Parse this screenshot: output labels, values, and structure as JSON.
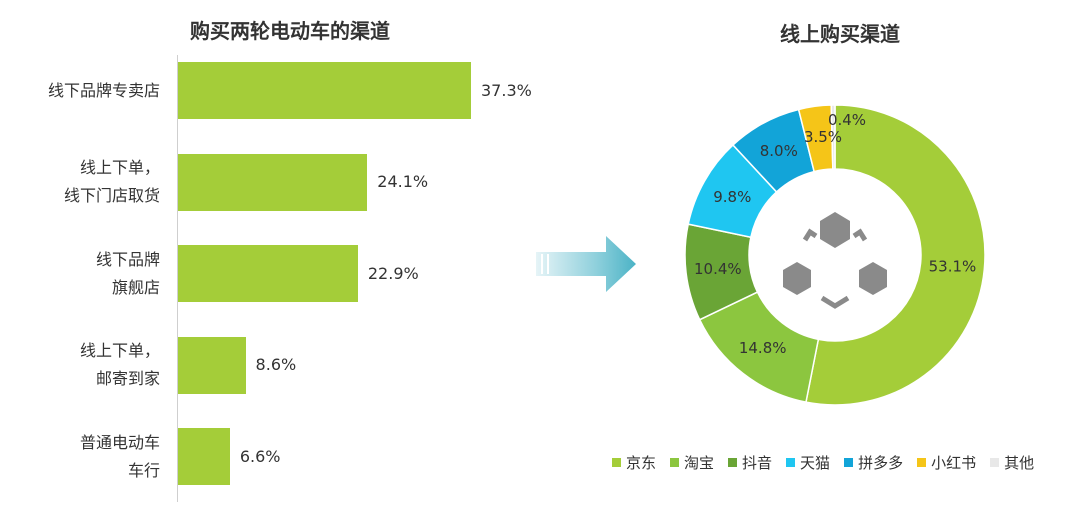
{
  "chart_data": [
    {
      "type": "bar",
      "orientation": "horizontal",
      "title": "购买两轮电动车的渠道",
      "categories": [
        "线下品牌专卖店",
        "线上下单，\n线下门店取货",
        "线下品牌\n旗舰店",
        "线上下单，\n邮寄到家",
        "普通电动车\n车行"
      ],
      "values": [
        37.3,
        24.1,
        22.9,
        8.6,
        6.6
      ],
      "value_labels": [
        "37.3%",
        "24.1%",
        "22.9%",
        "8.6%",
        "6.6%"
      ],
      "color": "#a4cd39"
    },
    {
      "type": "pie",
      "style": "donut",
      "title": "线上购买渠道",
      "series": [
        {
          "name": "京东",
          "value": 53.1,
          "label": "53.1%",
          "color": "#a4cd39"
        },
        {
          "name": "淘宝",
          "value": 14.8,
          "label": "14.8%",
          "color": "#8cc63f"
        },
        {
          "name": "抖音",
          "value": 10.4,
          "label": "10.4%",
          "color": "#6aa536"
        },
        {
          "name": "天猫",
          "value": 9.8,
          "label": "9.8%",
          "color": "#1fc6f1"
        },
        {
          "name": "拼多多",
          "value": 8.0,
          "label": "8.0%",
          "color": "#12a4d8"
        },
        {
          "name": "小红书",
          "value": 3.5,
          "label": "3.5%",
          "color": "#f5c518"
        },
        {
          "name": "其他",
          "value": 0.4,
          "label": "0.4%",
          "color": "#e8e8e8"
        }
      ],
      "legend_position": "bottom",
      "center_icon": "hexagon-cluster-icon"
    }
  ]
}
